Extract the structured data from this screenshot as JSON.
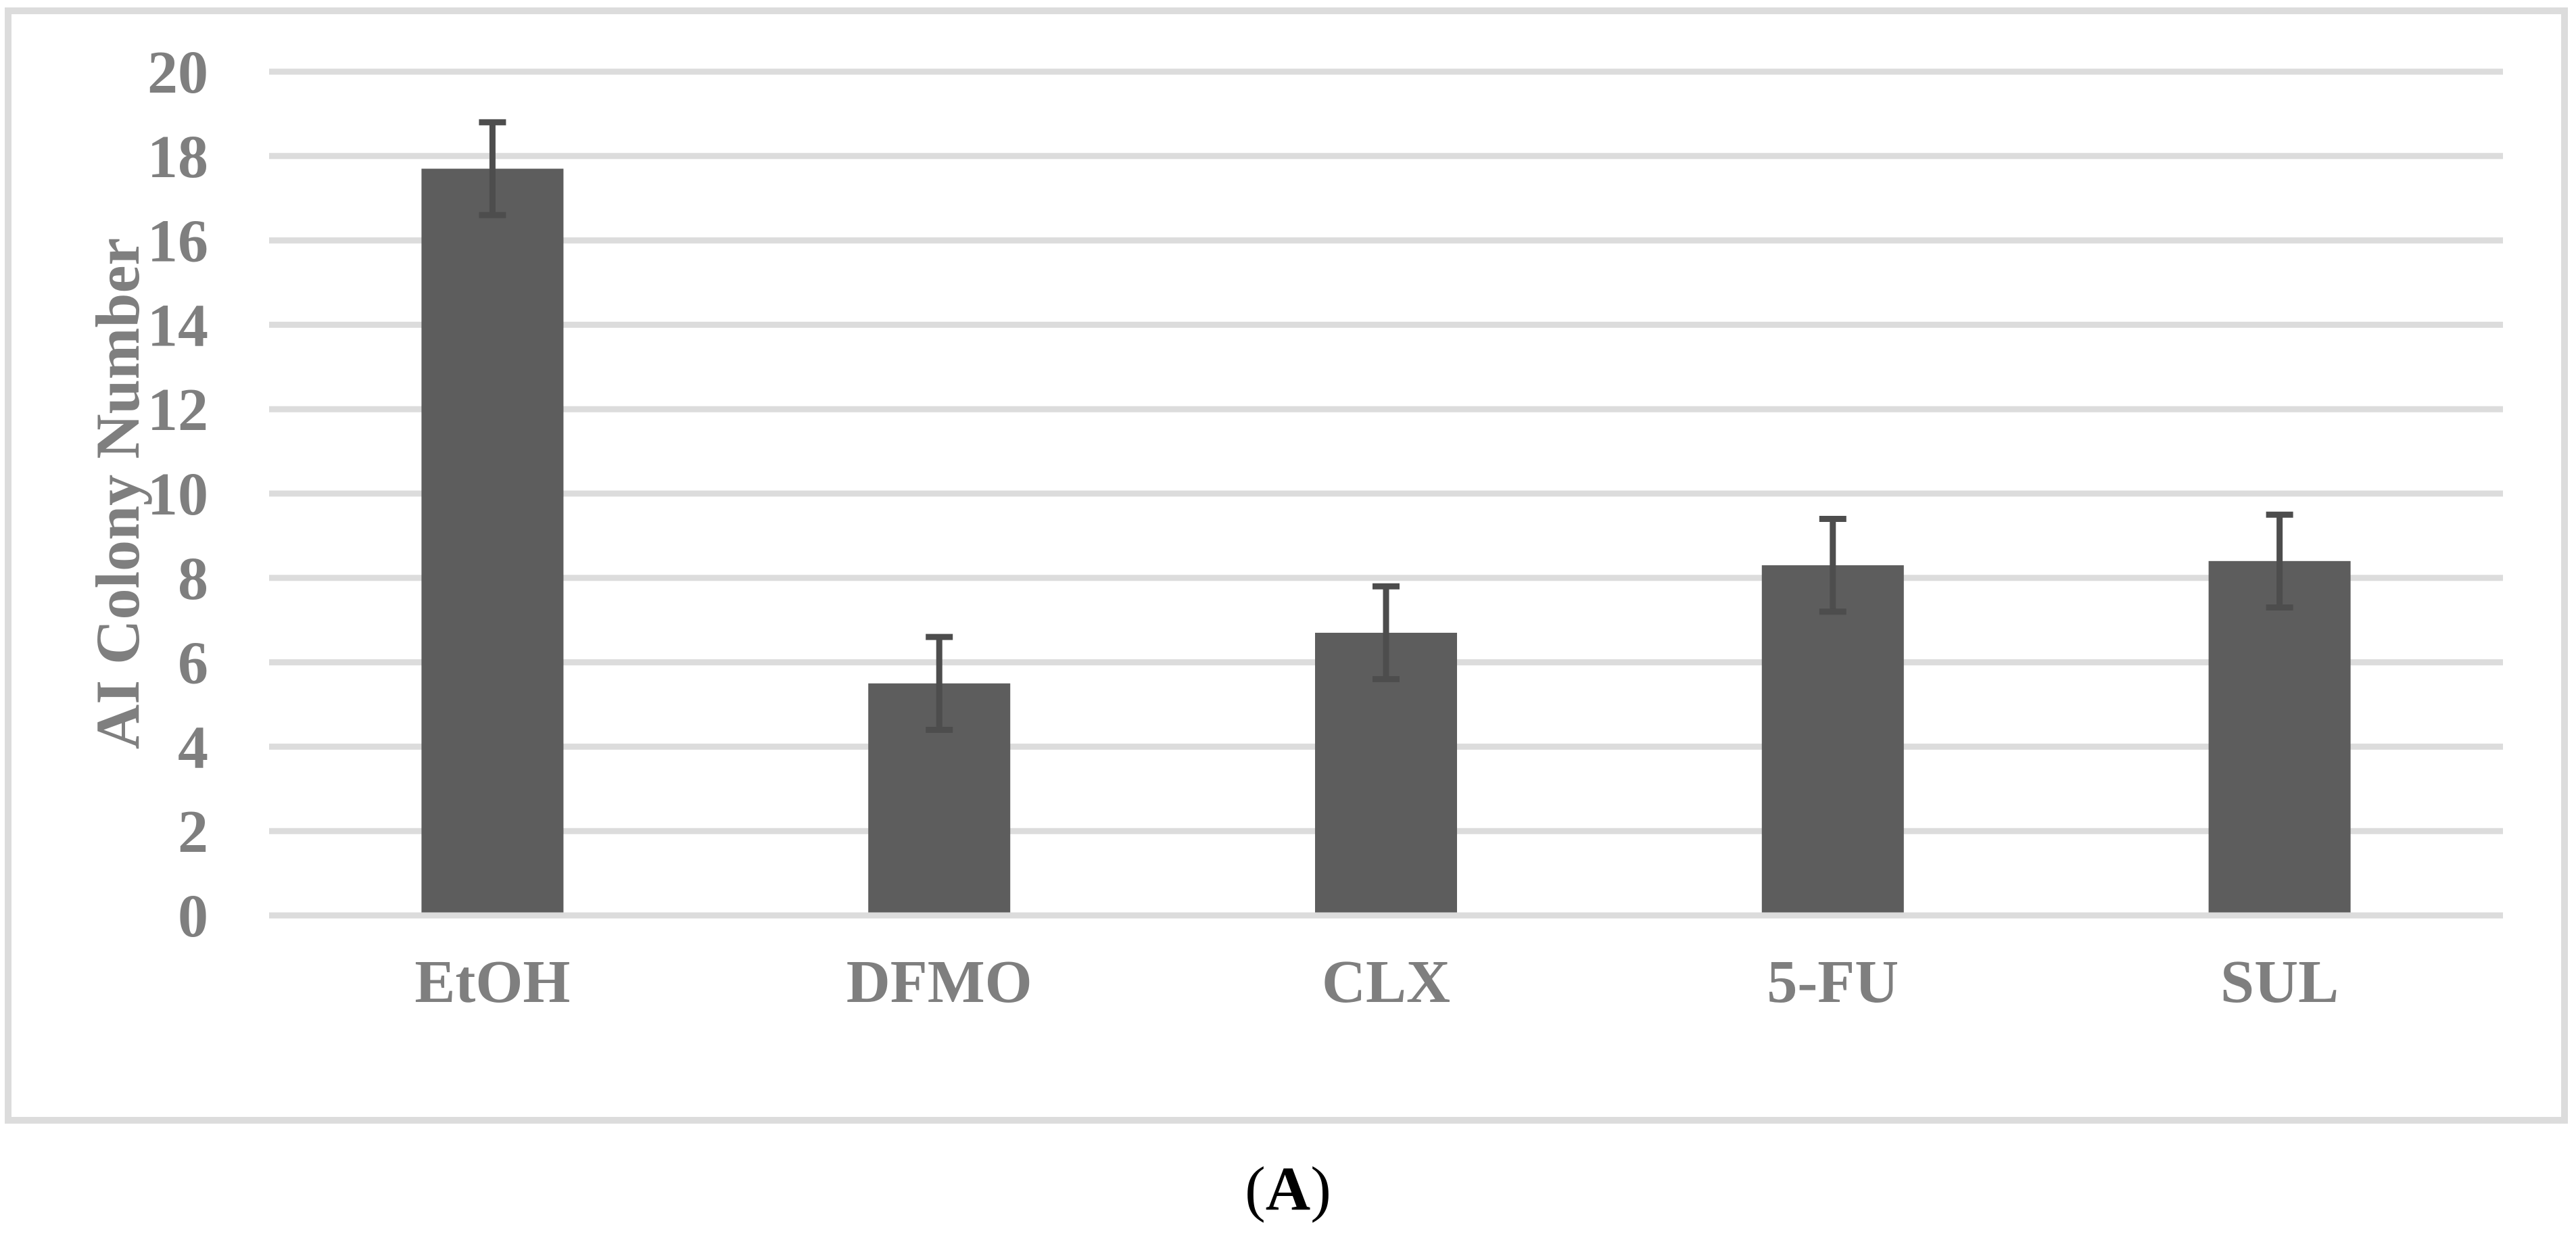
{
  "figure": {
    "caption": {
      "open": "(",
      "letter": "A",
      "close": ")"
    }
  },
  "chart_data": {
    "type": "bar",
    "title": "",
    "categories": [
      "EtOH",
      "DFMO",
      "CLX",
      "5-FU",
      "SUL"
    ],
    "values": [
      17.7,
      5.5,
      6.7,
      8.3,
      8.4
    ],
    "errors": [
      1.1,
      1.1,
      1.1,
      1.1,
      1.1
    ],
    "xlabel": "",
    "ylabel": "AI Colony Number",
    "ylim": [
      0,
      20
    ],
    "ytick_step": 2,
    "ytick_labels": [
      "0",
      "2",
      "4",
      "6",
      "8",
      "10",
      "12",
      "14",
      "16",
      "18",
      "20"
    ],
    "grid": "horizontal",
    "legend": "none",
    "bar_color": "#5d5d5d",
    "error_bar_color": "#4d4d4d",
    "gridline_color": "#dcdcdc",
    "frame_color": "#dcdcdc",
    "label_color": "#7f7f7f",
    "caption_color": "#000000"
  }
}
